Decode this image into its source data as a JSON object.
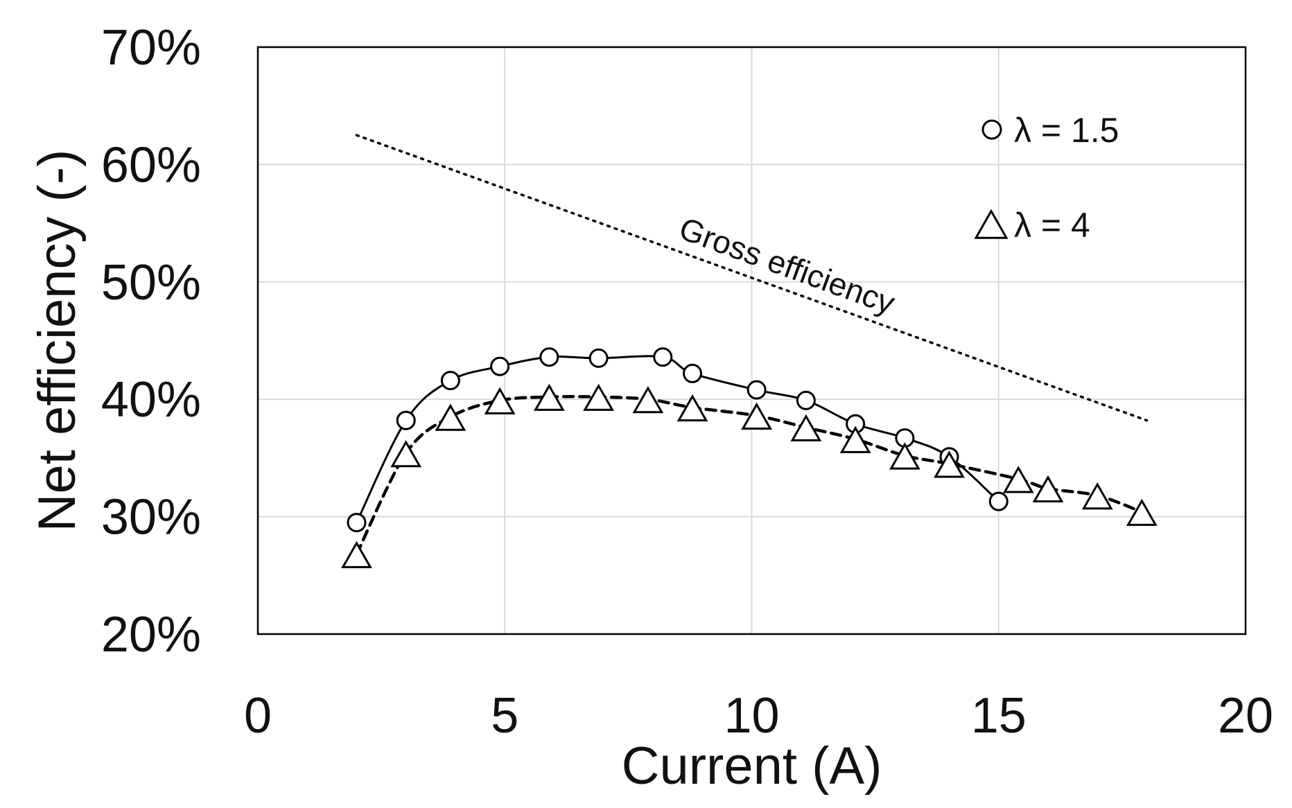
{
  "chart_data": {
    "type": "line",
    "title": "",
    "xlabel": "Current (A)",
    "ylabel": "Net efficiency (-)",
    "xlim": [
      0,
      20
    ],
    "ylim": [
      0.2,
      0.7
    ],
    "x_ticks": [
      0,
      5,
      10,
      15,
      20
    ],
    "x_tick_labels": [
      "0",
      "5",
      "10",
      "15",
      "20"
    ],
    "y_ticks": [
      0.2,
      0.3,
      0.4,
      0.5,
      0.6,
      0.7
    ],
    "y_tick_labels": [
      "20%",
      "30%",
      "40%",
      "50%",
      "60%",
      "70%"
    ],
    "grid": true,
    "legend_position": "top-right",
    "series": [
      {
        "name": "λ = 1.5",
        "marker": "circle",
        "line_style": "solid",
        "x": [
          2.0,
          3.0,
          3.9,
          4.9,
          5.9,
          6.9,
          8.2,
          8.8,
          10.1,
          11.1,
          12.1,
          13.1,
          14.0,
          15.0
        ],
        "values": [
          0.295,
          0.382,
          0.416,
          0.428,
          0.436,
          0.435,
          0.436,
          0.422,
          0.408,
          0.399,
          0.379,
          0.367,
          0.351,
          0.313
        ]
      },
      {
        "name": "λ = 4",
        "marker": "triangle",
        "line_style": "dashed",
        "x": [
          2.0,
          3.0,
          3.9,
          4.9,
          5.9,
          6.9,
          7.9,
          8.8,
          10.1,
          11.1,
          12.1,
          13.1,
          14.0,
          15.4,
          16.0,
          17.0,
          17.9
        ],
        "values": [
          0.268,
          0.354,
          0.385,
          0.399,
          0.402,
          0.402,
          0.4,
          0.393,
          0.386,
          0.376,
          0.366,
          0.352,
          0.345,
          0.332,
          0.324,
          0.318,
          0.304
        ]
      },
      {
        "name": "Gross efficiency",
        "marker": "none",
        "line_style": "dotted",
        "x": [
          2.0,
          18.0
        ],
        "values": [
          0.625,
          0.382
        ]
      }
    ],
    "annotations": [
      {
        "text": "Gross efficiency",
        "x": 10.5,
        "y": 0.505
      }
    ]
  }
}
